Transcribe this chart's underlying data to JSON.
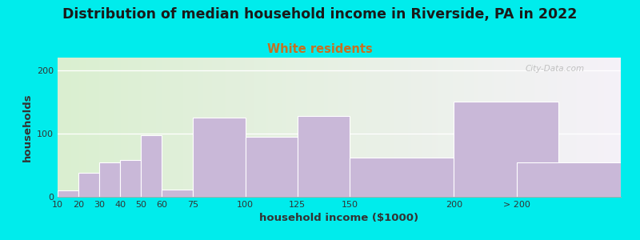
{
  "title": "Distribution of median household income in Riverside, PA in 2022",
  "subtitle": "White residents",
  "xlabel": "household income ($1000)",
  "ylabel": "households",
  "bar_labels": [
    "10",
    "20",
    "30",
    "40",
    "50",
    "60",
    "75",
    "100",
    "125",
    "150",
    "200",
    "> 200"
  ],
  "bar_heights": [
    10,
    38,
    55,
    58,
    97,
    12,
    125,
    95,
    128,
    62,
    150,
    55
  ],
  "bar_color": "#c9b8d8",
  "bar_edgecolor": "#ffffff",
  "yticks": [
    0,
    100,
    200
  ],
  "ylim": [
    0,
    220
  ],
  "background_outer": "#00ecec",
  "background_inner_left": "#daefd0",
  "background_inner_right": "#f5f2f8",
  "title_fontsize": 12.5,
  "subtitle_fontsize": 10.5,
  "subtitle_color": "#c87020",
  "axis_label_fontsize": 9.5,
  "watermark": "City-Data.com",
  "income_vals": [
    10,
    20,
    30,
    40,
    50,
    60,
    75,
    100,
    125,
    150,
    200,
    230
  ],
  "income_widths": [
    10,
    10,
    10,
    10,
    10,
    15,
    25,
    25,
    25,
    50,
    50,
    50
  ],
  "xlim": [
    10,
    280
  ]
}
